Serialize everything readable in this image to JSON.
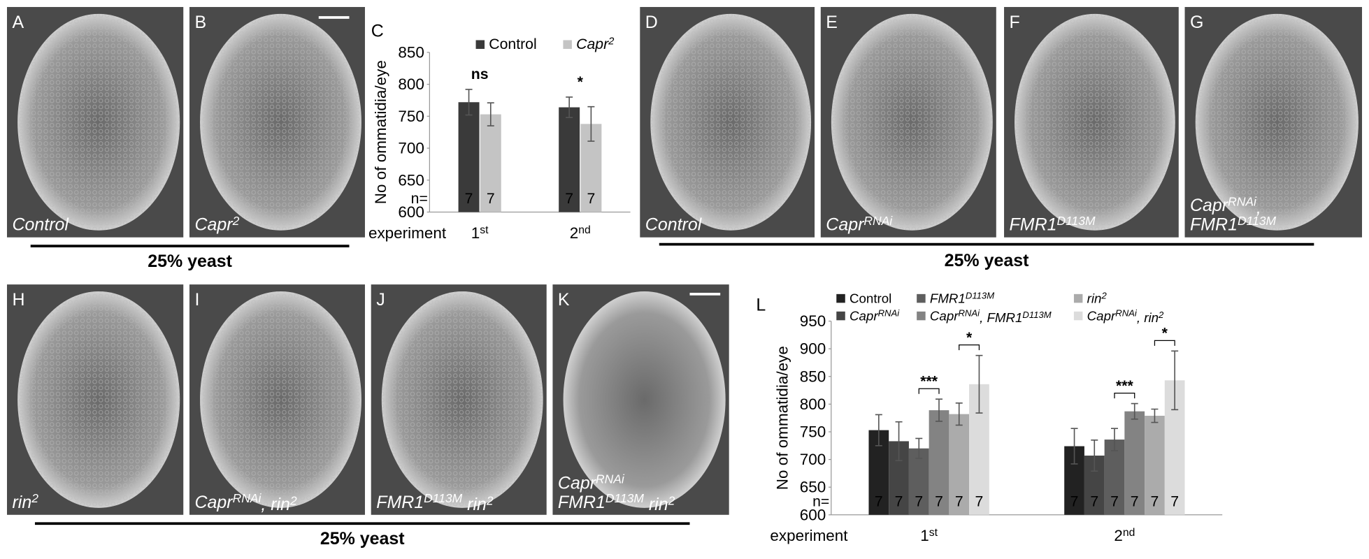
{
  "panels": [
    {
      "label": "A",
      "caption": [
        [
          "Control"
        ]
      ]
    },
    {
      "label": "B",
      "caption": [
        [
          "Capr",
          "2"
        ]
      ]
    },
    {
      "label": "D",
      "caption": [
        [
          "Control"
        ]
      ]
    },
    {
      "label": "E",
      "caption": [
        [
          "Capr",
          "RNAi"
        ]
      ]
    },
    {
      "label": "F",
      "caption": [
        [
          "FMR1",
          "D113M"
        ]
      ]
    },
    {
      "label": "G",
      "caption": [
        [
          "Capr",
          "RNAi",
          ","
        ],
        [
          "FMR1",
          "D113M"
        ]
      ]
    },
    {
      "label": "H",
      "caption": [
        [
          "rin",
          "2"
        ]
      ]
    },
    {
      "label": "I",
      "caption": [
        [
          "Capr",
          "RNAi",
          ", rin",
          "2"
        ]
      ]
    },
    {
      "label": "J",
      "caption": [
        [
          "FMR1",
          "D113M",
          " rin",
          "2"
        ]
      ]
    },
    {
      "label": "K",
      "caption": [
        [
          "Capr",
          "RNAi"
        ],
        [
          "FMR1",
          "D113M",
          " rin",
          "2"
        ]
      ]
    }
  ],
  "yeast_labels": [
    "25% yeast",
    "25% yeast",
    "25% yeast"
  ],
  "chart_data": [
    {
      "type": "bar",
      "label": "C",
      "ylabel": "No of ommatidia/eye",
      "xlabel": "experiment",
      "n_label": "n=",
      "categories": [
        [
          "1",
          "st"
        ],
        [
          "2",
          "nd"
        ]
      ],
      "series": [
        {
          "name": [
            "Control"
          ],
          "color": "#3a3a3a",
          "values": [
            772,
            764
          ],
          "errors": [
            20,
            16
          ],
          "n": [
            7,
            7
          ]
        },
        {
          "name": [
            "Capr",
            "2"
          ],
          "color": "#c4c4c4",
          "values": [
            753,
            738
          ],
          "errors": [
            18,
            27
          ],
          "n": [
            7,
            7
          ]
        }
      ],
      "annotations": [
        "ns",
        "*"
      ],
      "ylim": [
        600,
        850
      ],
      "yticks": [
        600,
        650,
        700,
        750,
        800,
        850
      ]
    },
    {
      "type": "bar",
      "label": "L",
      "ylabel": "No of ommatidia/eye",
      "xlabel": "experiment",
      "n_label": "n=",
      "categories": [
        [
          "1",
          "st"
        ],
        [
          "2",
          "nd"
        ]
      ],
      "series": [
        {
          "name": [
            "Control"
          ],
          "color": "#222222",
          "values": [
            753,
            724
          ],
          "errors": [
            28,
            32
          ],
          "n": [
            7,
            7
          ]
        },
        {
          "name": [
            "Capr",
            "RNAi"
          ],
          "color": "#454545",
          "values": [
            733,
            707
          ],
          "errors": [
            35,
            28
          ],
          "n": [
            7,
            7
          ]
        },
        {
          "name": [
            "FMR1",
            "D113M"
          ],
          "color": "#5e5e5e",
          "values": [
            720,
            736
          ],
          "errors": [
            18,
            20
          ],
          "n": [
            7,
            7
          ]
        },
        {
          "name": [
            "Capr",
            "RNAi",
            ", FMR1",
            "D113M"
          ],
          "color": "#838383",
          "values": [
            789,
            787
          ],
          "errors": [
            20,
            14
          ],
          "n": [
            7,
            7
          ]
        },
        {
          "name": [
            "rin",
            "2"
          ],
          "color": "#ababab",
          "values": [
            782,
            779
          ],
          "errors": [
            20,
            12
          ],
          "n": [
            7,
            7
          ]
        },
        {
          "name": [
            "Capr",
            "RNAi",
            ", rin",
            "2"
          ],
          "color": "#dcdcdc",
          "values": [
            836,
            843
          ],
          "errors": [
            52,
            53
          ],
          "n": [
            7,
            7
          ]
        }
      ],
      "annotations": [
        "***",
        "*",
        "***",
        "*"
      ],
      "ylim": [
        600,
        950
      ],
      "yticks": [
        600,
        650,
        700,
        750,
        800,
        850,
        900,
        950
      ]
    }
  ]
}
